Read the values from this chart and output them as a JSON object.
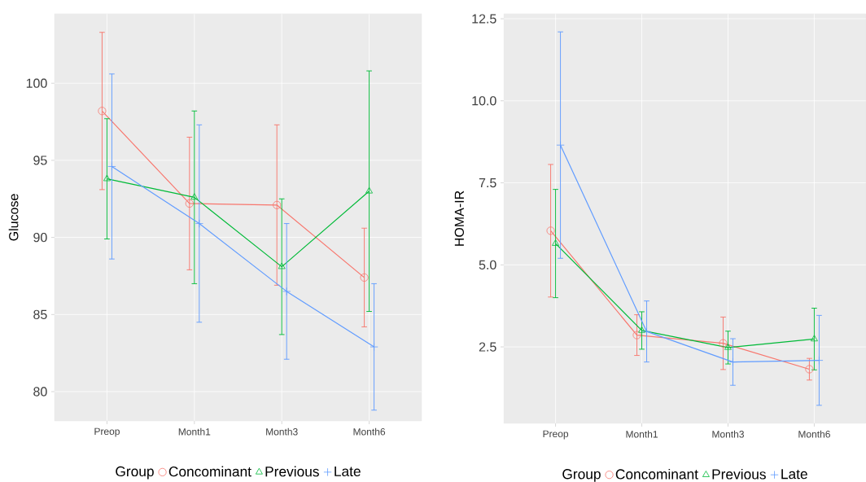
{
  "chart_data": [
    {
      "type": "line",
      "ylabel": "Glucose",
      "legend_title": "Group",
      "categories": [
        "Preop",
        "Month1",
        "Month3",
        "Month6"
      ],
      "series": [
        {
          "name": "Concominant",
          "color": "#f8766d",
          "marker": "circle",
          "values": [
            98.2,
            92.2,
            92.1,
            87.4
          ],
          "errors": [
            5.1,
            4.3,
            5.2,
            3.2
          ]
        },
        {
          "name": "Previous",
          "color": "#00ba38",
          "marker": "triangle",
          "values": [
            93.8,
            92.6,
            88.1,
            93.0
          ],
          "errors": [
            3.9,
            5.6,
            4.4,
            7.8
          ]
        },
        {
          "name": "Late",
          "color": "#619cff",
          "marker": "cross",
          "values": [
            94.6,
            90.9,
            86.5,
            82.9
          ],
          "errors": [
            6.0,
            6.4,
            4.4,
            4.1
          ]
        }
      ],
      "ylim": [
        78.1,
        104.5
      ],
      "yticks": [
        80,
        85,
        90,
        95,
        100
      ],
      "grid": true,
      "legend": "bottom"
    },
    {
      "type": "line",
      "ylabel": "HOMA-IR",
      "legend_title": "Group",
      "categories": [
        "Preop",
        "Month1",
        "Month3",
        "Month6"
      ],
      "series": [
        {
          "name": "Concominant",
          "color": "#f8766d",
          "marker": "circle",
          "values": [
            6.04,
            2.86,
            2.61,
            1.82
          ],
          "errors": [
            2.02,
            0.62,
            0.8,
            0.33
          ]
        },
        {
          "name": "Previous",
          "color": "#00ba38",
          "marker": "triangle",
          "values": [
            5.65,
            3.0,
            2.48,
            2.74
          ],
          "errors": [
            1.65,
            0.57,
            0.5,
            0.94
          ]
        },
        {
          "name": "Late",
          "color": "#619cff",
          "marker": "cross",
          "values": [
            8.65,
            2.97,
            2.04,
            2.09
          ],
          "errors": [
            3.45,
            0.93,
            0.71,
            1.37
          ]
        }
      ],
      "ylim": [
        0.17,
        12.65
      ],
      "yticks": [
        2.5,
        {
          "value": 5,
          "label": "5.0"
        },
        7.5,
        {
          "value": 10,
          "label": "10.0"
        },
        12.5
      ],
      "grid": true,
      "legend": "bottom"
    }
  ]
}
